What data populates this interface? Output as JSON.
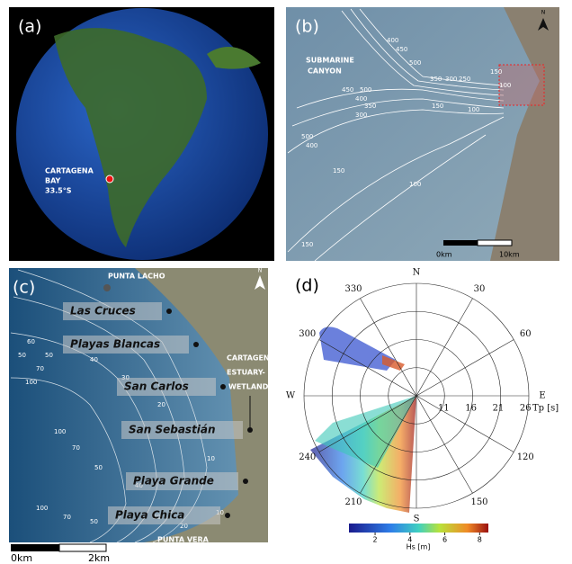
{
  "panels": [
    {
      "label": "(a)",
      "annotation": [
        "CARTAGENA",
        "BAY",
        "33.5°S"
      ]
    },
    {
      "label": "(b)",
      "annotation": [
        "SUBMARINE",
        "CANYON"
      ],
      "contour_labels": [
        "400",
        "450",
        "500",
        "350",
        "300",
        "250",
        "150",
        "100",
        "450",
        "500",
        "400",
        "350",
        "300",
        "150",
        "100",
        "500",
        "400",
        "150",
        "100",
        "150"
      ],
      "north": "N",
      "scale": [
        "0km",
        "10km"
      ]
    },
    {
      "label": "(c)",
      "capes": [
        "PUNTA LACHO",
        "PUNTA VERA"
      ],
      "places": [
        "Las Cruces",
        "Playas Blancas",
        "San Carlos",
        "San Sebastián",
        "Playa Grande",
        "Playa Chica"
      ],
      "wetland": [
        "CARTAGENA",
        "ESTUARY-",
        "WETLAND"
      ],
      "contour_labels": [
        "60",
        "50",
        "70",
        "100",
        "50",
        "40",
        "30",
        "20",
        "10",
        "100",
        "70",
        "50",
        "40",
        "100",
        "70",
        "50",
        "30",
        "20",
        "10"
      ],
      "north": "N",
      "scale": [
        "0km",
        "2km"
      ]
    },
    {
      "label": "(d)",
      "directions": [
        "N",
        "30",
        "60",
        "E",
        "120",
        "150",
        "S",
        "210",
        "240",
        "W",
        "300",
        "330"
      ],
      "radial_ticks": [
        11,
        16,
        21,
        26
      ],
      "radial_unit": "Tp [s]",
      "colorbar_ticks": [
        2,
        4,
        6,
        8
      ],
      "colorbar_label": "Hs [m]"
    }
  ]
}
